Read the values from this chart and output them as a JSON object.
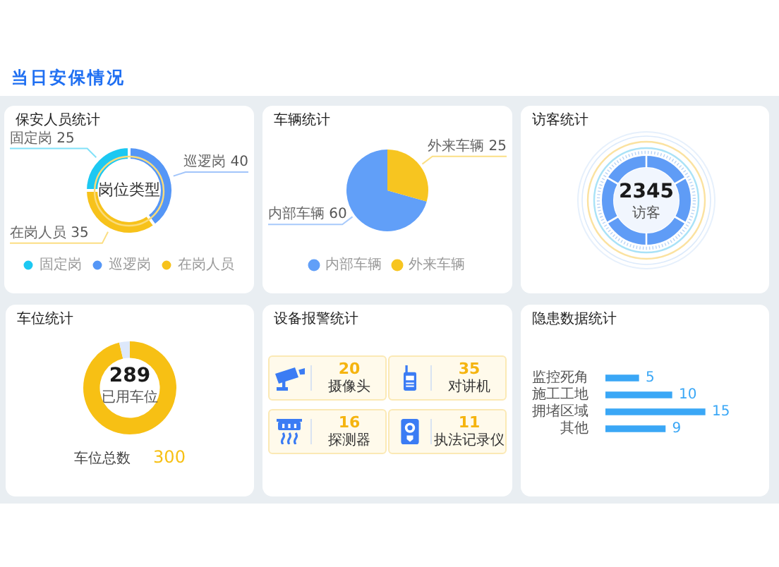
{
  "chart_data": [
    {
      "type": "other",
      "title": "当日安保情况"
    },
    {
      "type": "donut",
      "title": "保安人员统计",
      "categories": [
        "固定岗",
        "巡逻岗",
        "在岗人员"
      ],
      "values": [
        25,
        40,
        35
      ],
      "colors": [
        "#1cc8f2",
        "#5596f6",
        "#f7c21b"
      ],
      "data_labels": true,
      "legend": "bottom",
      "annotations": [
        "岗位类型"
      ]
    },
    {
      "type": "pie",
      "title": "车辆统计",
      "categories": [
        "内部车辆",
        "外来车辆"
      ],
      "values": [
        60,
        25
      ],
      "colors": [
        "#619ff8",
        "#f7c520"
      ],
      "data_labels": true,
      "legend": "bottom"
    },
    {
      "type": "other",
      "title": "访客统计",
      "annotations": [
        "2345",
        "访客"
      ]
    },
    {
      "type": "donut",
      "title": "车位统计",
      "categories": [
        "已用车位",
        null
      ],
      "values": [
        289,
        11
      ],
      "colors": [
        "#f7c014",
        "#dde8fb"
      ],
      "value_labels": [
        "289",
        null
      ],
      "annotations": [
        "车位总数",
        "300"
      ]
    },
    {
      "type": "other",
      "title": "设备报警统计",
      "categories": [
        "摄像头",
        "对讲机",
        "探测器",
        "执法记录仪"
      ],
      "values": [
        20,
        35,
        16,
        11
      ],
      "data_labels": true
    },
    {
      "type": "bar",
      "title": "隐患数据统计",
      "orientation": "horizontal",
      "categories": [
        "监控死角",
        "施工工地",
        "拥堵区域",
        "其他"
      ],
      "values": [
        5,
        10,
        15,
        9
      ],
      "color": "#3aa7f6",
      "data_labels": true,
      "tick_labels": "y"
    }
  ]
}
